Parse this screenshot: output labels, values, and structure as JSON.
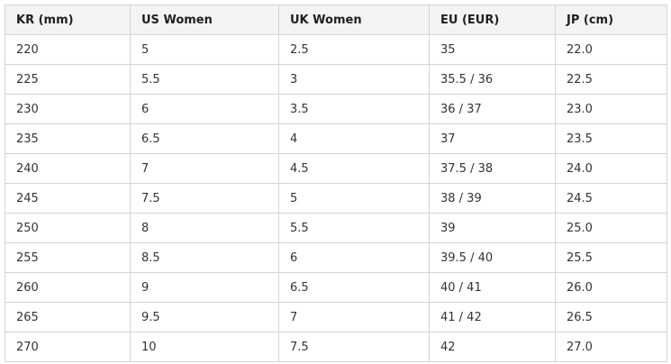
{
  "table": {
    "headers": [
      "KR (mm)",
      "US Women",
      "UK Women",
      "EU (EUR)",
      "JP (cm)"
    ],
    "rows": [
      [
        "220",
        "5",
        "2.5",
        "35",
        "22.0"
      ],
      [
        "225",
        "5.5",
        "3",
        "35.5 / 36",
        "22.5"
      ],
      [
        "230",
        "6",
        "3.5",
        "36 / 37",
        "23.0"
      ],
      [
        "235",
        "6.5",
        "4",
        "37",
        "23.5"
      ],
      [
        "240",
        "7",
        "4.5",
        "37.5 / 38",
        "24.0"
      ],
      [
        "245",
        "7.5",
        "5",
        "38 / 39",
        "24.5"
      ],
      [
        "250",
        "8",
        "5.5",
        "39",
        "25.0"
      ],
      [
        "255",
        "8.5",
        "6",
        "39.5 / 40",
        "25.5"
      ],
      [
        "260",
        "9",
        "6.5",
        "40 / 41",
        "26.0"
      ],
      [
        "265",
        "9.5",
        "7",
        "41 / 42",
        "26.5"
      ],
      [
        "270",
        "10",
        "7.5",
        "42",
        "27.0"
      ]
    ]
  }
}
